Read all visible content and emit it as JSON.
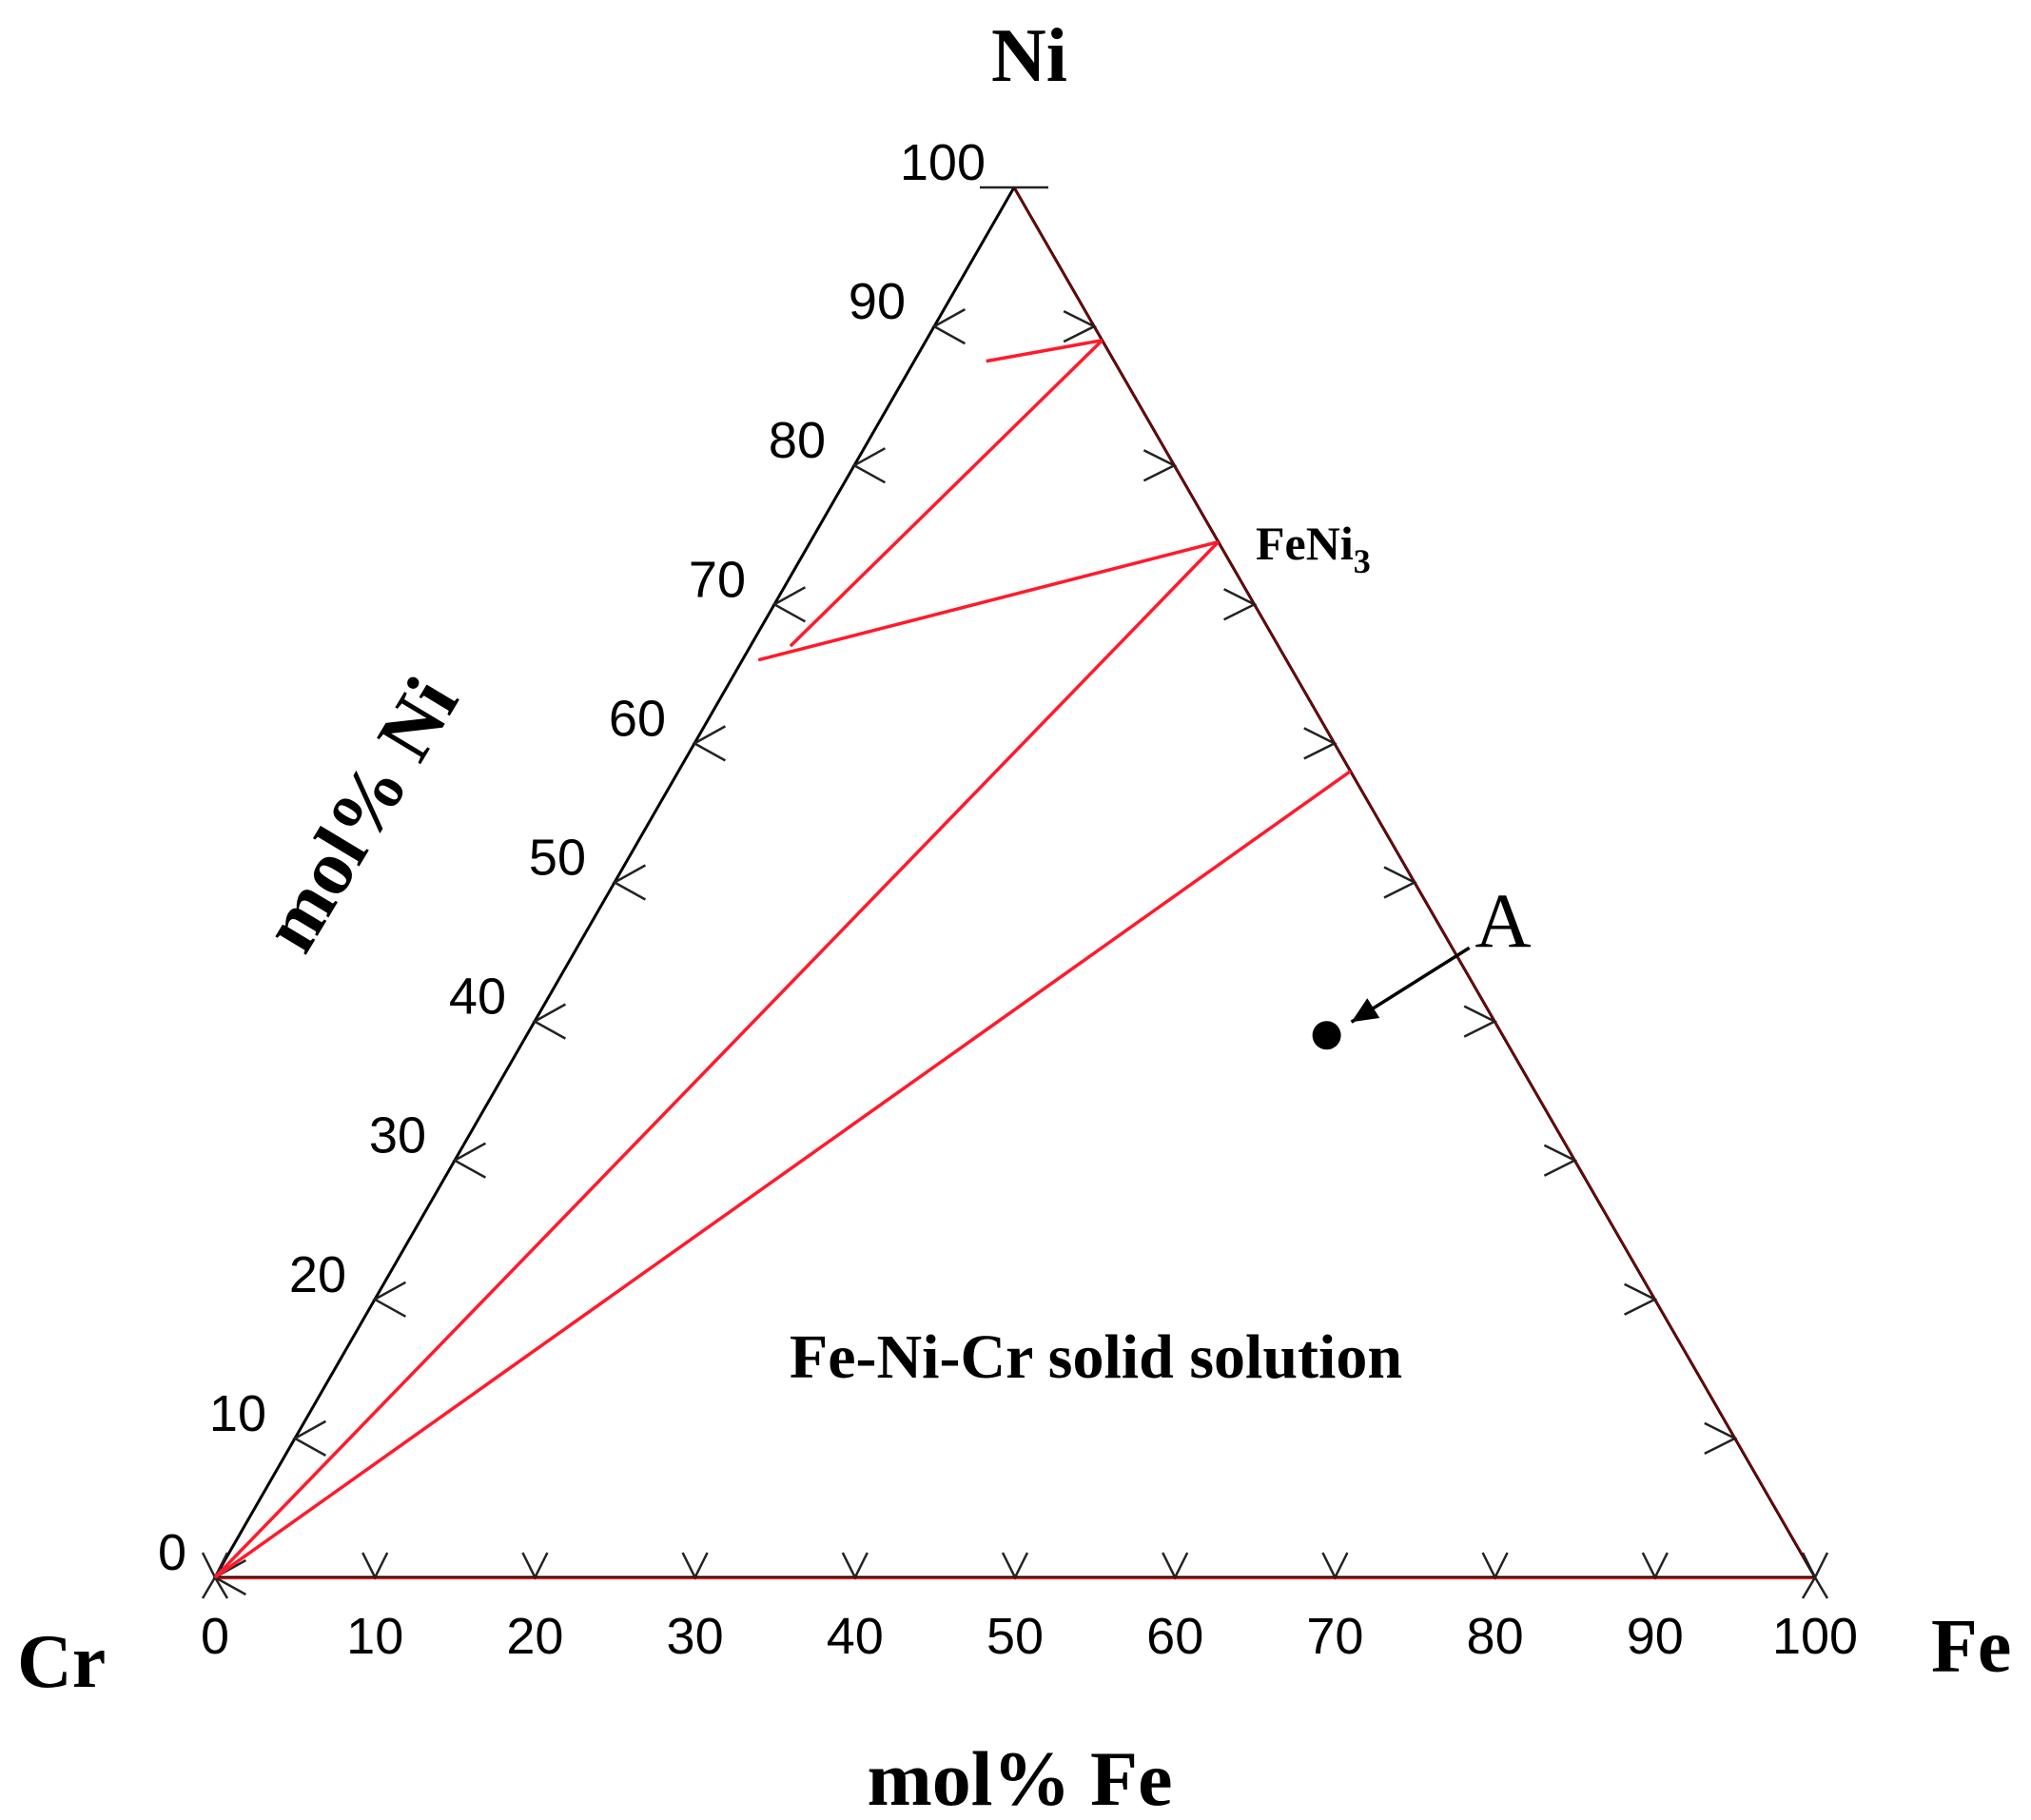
{
  "vertices": {
    "top": "Ni",
    "left": "Cr",
    "right": "Fe"
  },
  "axis_titles": {
    "left": "mol% Ni",
    "bottom": "mol% Fe"
  },
  "ticks": {
    "left": [
      "0",
      "10",
      "20",
      "30",
      "40",
      "50",
      "60",
      "70",
      "80",
      "90",
      "100"
    ],
    "bottom": [
      "0",
      "10",
      "20",
      "30",
      "40",
      "50",
      "60",
      "70",
      "80",
      "90",
      "100"
    ]
  },
  "labels": {
    "compound_main": "FeNi",
    "compound_sub": "3",
    "region": "Fe-Ni-Cr solid solution",
    "point": "A"
  },
  "colors": {
    "tie_line": "#ff1a2b",
    "frame": "#000000"
  },
  "tie_lines": [
    {
      "from": {
        "Fe": 4.5,
        "Ni": 87.5
      },
      "to": {
        "Fe": 11,
        "Ni": 89
      }
    },
    {
      "from": {
        "Fe": 11,
        "Ni": 89
      },
      "to": {
        "Fe": 2.5,
        "Ni": 67
      }
    },
    {
      "from": {
        "Fe": 1,
        "Ni": 66
      },
      "to": {
        "Fe": 25.5,
        "Ni": 74.5
      }
    },
    {
      "from": {
        "Fe": 25.5,
        "Ni": 74.5
      },
      "to": {
        "Fe": 0,
        "Ni": 0
      }
    },
    {
      "from": {
        "Fe": 42,
        "Ni": 58
      },
      "to": {
        "Fe": 0,
        "Ni": 0
      }
    }
  ],
  "point_A": {
    "Fe": 50,
    "Ni": 39
  }
}
